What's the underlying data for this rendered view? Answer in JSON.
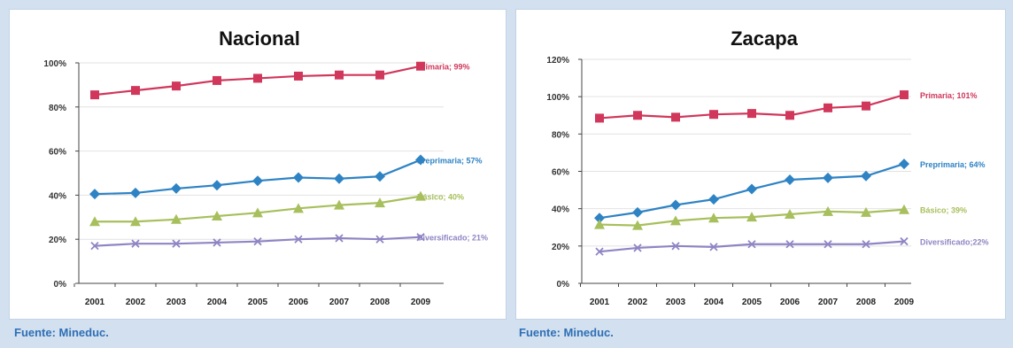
{
  "chart_data": [
    {
      "type": "line",
      "title": "Nacional",
      "x": [
        "2001",
        "2002",
        "2003",
        "2004",
        "2005",
        "2006",
        "2007",
        "2008",
        "2009"
      ],
      "ylim": [
        0,
        100
      ],
      "yticks": [
        "0%",
        "20%",
        "40%",
        "60%",
        "80%",
        "100%"
      ],
      "grid": true,
      "series": [
        {
          "label": "Primaria; 99%",
          "color": "#d0375b",
          "marker": "square",
          "values": [
            85.5,
            87.5,
            89.5,
            92,
            93,
            94,
            94.5,
            94.5,
            98.5
          ]
        },
        {
          "label": "Preprimaria; 57%",
          "color": "#2e83c4",
          "marker": "diamond",
          "values": [
            40.5,
            41,
            43,
            44.5,
            46.5,
            48,
            47.5,
            48.5,
            56
          ]
        },
        {
          "label": "Básico; 40%",
          "color": "#a7bf5c",
          "marker": "triangle",
          "values": [
            28,
            28,
            29,
            30.5,
            32,
            34,
            35.5,
            36.5,
            39.5
          ]
        },
        {
          "label": "Diversificado; 21%",
          "color": "#8f85c4",
          "marker": "x",
          "values": [
            17,
            18,
            18,
            18.5,
            19,
            20,
            20.5,
            20,
            21
          ]
        }
      ]
    },
    {
      "type": "line",
      "title": "Zacapa",
      "x": [
        "2001",
        "2002",
        "2003",
        "2004",
        "2005",
        "2006",
        "2007",
        "2008",
        "2009"
      ],
      "ylim": [
        0,
        120
      ],
      "yticks": [
        "0%",
        "20%",
        "40%",
        "60%",
        "80%",
        "100%",
        "120%"
      ],
      "grid": true,
      "series": [
        {
          "label": "Primaria; 101%",
          "color": "#d0375b",
          "marker": "square",
          "values": [
            88.5,
            90,
            89,
            90.5,
            91,
            90,
            94,
            95,
            101
          ]
        },
        {
          "label": "Preprimaria; 64%",
          "color": "#2e83c4",
          "marker": "diamond",
          "values": [
            35,
            38,
            42,
            45,
            50.5,
            55.5,
            56.5,
            57.5,
            64
          ]
        },
        {
          "label": "Básico; 39%",
          "color": "#a7bf5c",
          "marker": "triangle",
          "values": [
            31.5,
            31,
            33.5,
            35,
            35.5,
            37,
            38.5,
            38,
            39.5
          ]
        },
        {
          "label": "Diversificado;22%",
          "color": "#8f85c4",
          "marker": "x",
          "values": [
            17,
            19,
            20,
            19.5,
            21,
            21,
            21,
            21,
            22.5
          ]
        }
      ]
    }
  ],
  "footer": {
    "left": "Fuente: Mineduc.",
    "right": "Fuente: Mineduc."
  }
}
